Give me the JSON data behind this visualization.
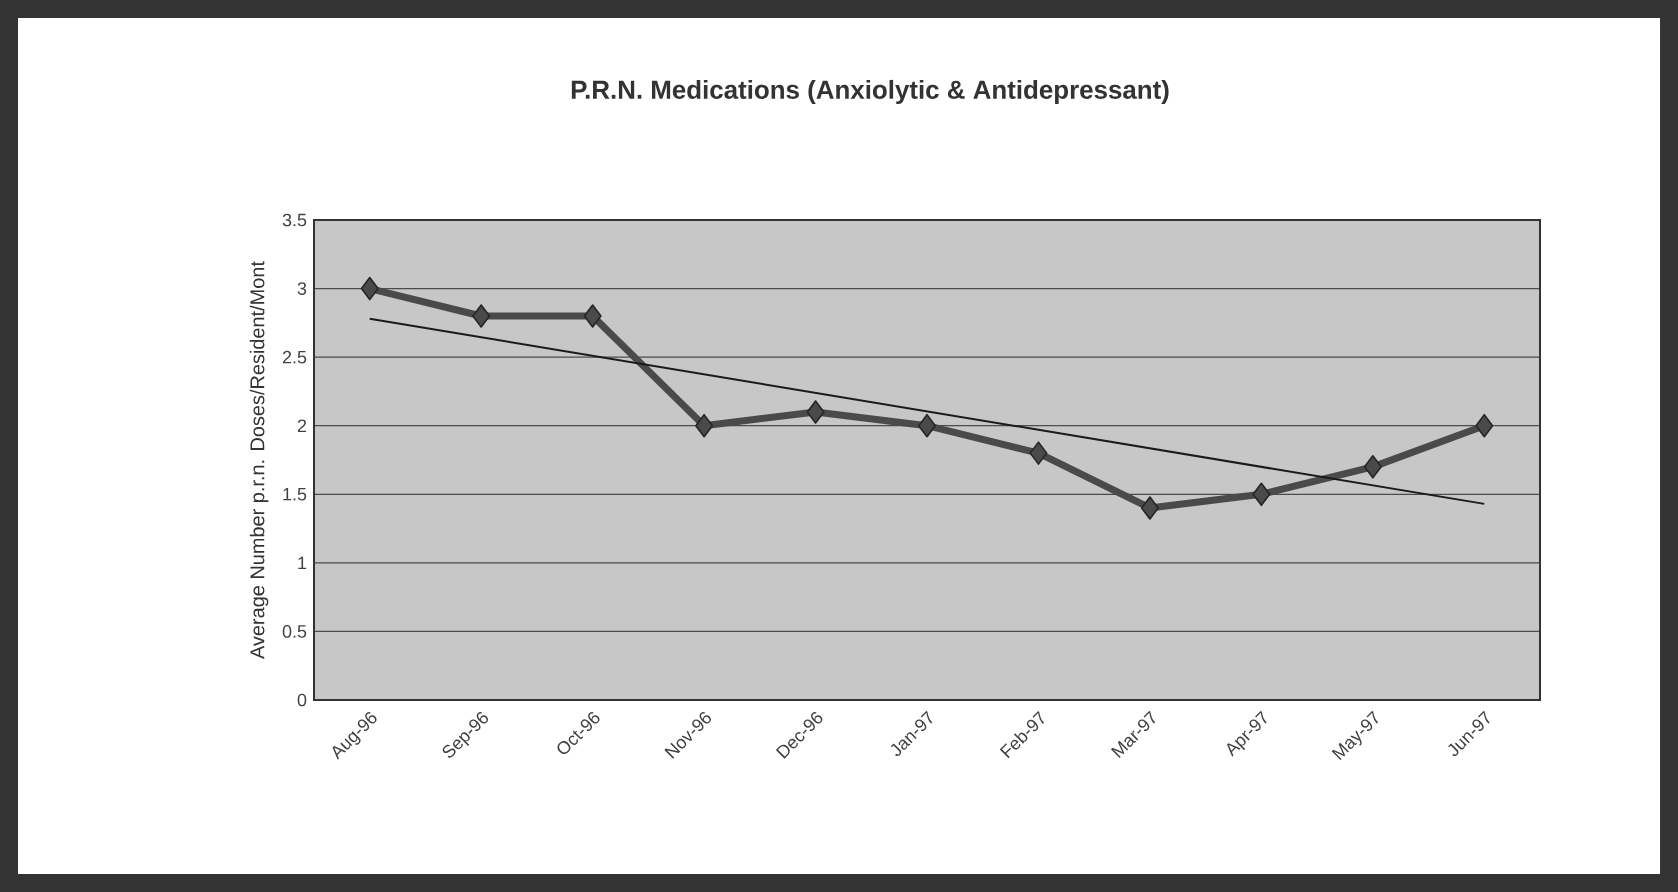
{
  "chart_data": {
    "type": "line",
    "title": "P.R.N. Medications (Anxiolytic & Antidepressant)",
    "ylabel": "Average Number p.r.n. Doses/Resident/Mont",
    "categories": [
      "Aug-96",
      "Sep-96",
      "Oct-96",
      "Nov-96",
      "Dec-96",
      "Jan-97",
      "Feb-97",
      "Mar-97",
      "Apr-97",
      "May-97",
      "Jun-97"
    ],
    "series": [
      {
        "color": "#4a4a4a",
        "values": [
          3.0,
          2.8,
          2.8,
          2.0,
          2.1,
          2.0,
          1.8,
          1.4,
          1.5,
          1.7,
          2.0
        ]
      },
      {
        "type": "line",
        "color": "#1a1a1a",
        "marker": "none",
        "values": [
          2.78,
          null,
          null,
          null,
          null,
          null,
          null,
          null,
          null,
          null,
          1.43
        ]
      }
    ],
    "ylim": [
      0,
      3.5
    ],
    "yticks": [
      0,
      0.5,
      1,
      1.5,
      2,
      2.5,
      3,
      3.5
    ],
    "grid": "y",
    "marker": "diamond"
  }
}
